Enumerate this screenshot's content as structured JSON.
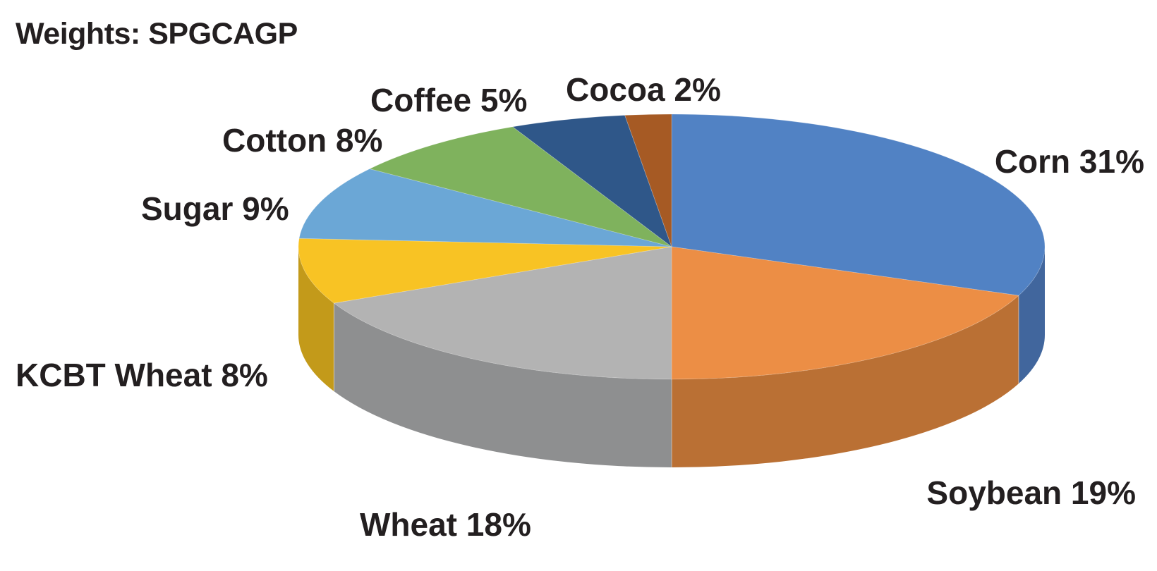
{
  "chart_data": {
    "type": "pie",
    "title": "Weights: SPGCAGP",
    "slices": [
      {
        "name": "Corn",
        "value": 31,
        "label": "Corn 31%",
        "color": "#5182c4",
        "side_color": "#41669d"
      },
      {
        "name": "Soybean",
        "value": 19,
        "label": "Soybean 19%",
        "color": "#ec8e45",
        "side_color": "#ba7034"
      },
      {
        "name": "Wheat",
        "value": 18,
        "label": "Wheat 18%",
        "color": "#b3b3b3",
        "side_color": "#8e8f90"
      },
      {
        "name": "KCBT Wheat",
        "value": 8,
        "label": "KCBT Wheat 8%",
        "color": "#f8c324",
        "side_color": "#c39a1a"
      },
      {
        "name": "Sugar",
        "value": 9,
        "label": "Sugar 9%",
        "color": "#6ba7d6",
        "side_color": "#5486aa"
      },
      {
        "name": "Cotton",
        "value": 8,
        "label": "Cotton 8%",
        "color": "#7fb25d",
        "side_color": "#65904a"
      },
      {
        "name": "Coffee",
        "value": 5,
        "label": "Coffee 5%",
        "color": "#2f5789",
        "side_color": "#25456d"
      },
      {
        "name": "Cocoa",
        "value": 2,
        "label": "Cocoa 2%",
        "color": "#a65a24",
        "side_color": "#84481c"
      }
    ]
  }
}
